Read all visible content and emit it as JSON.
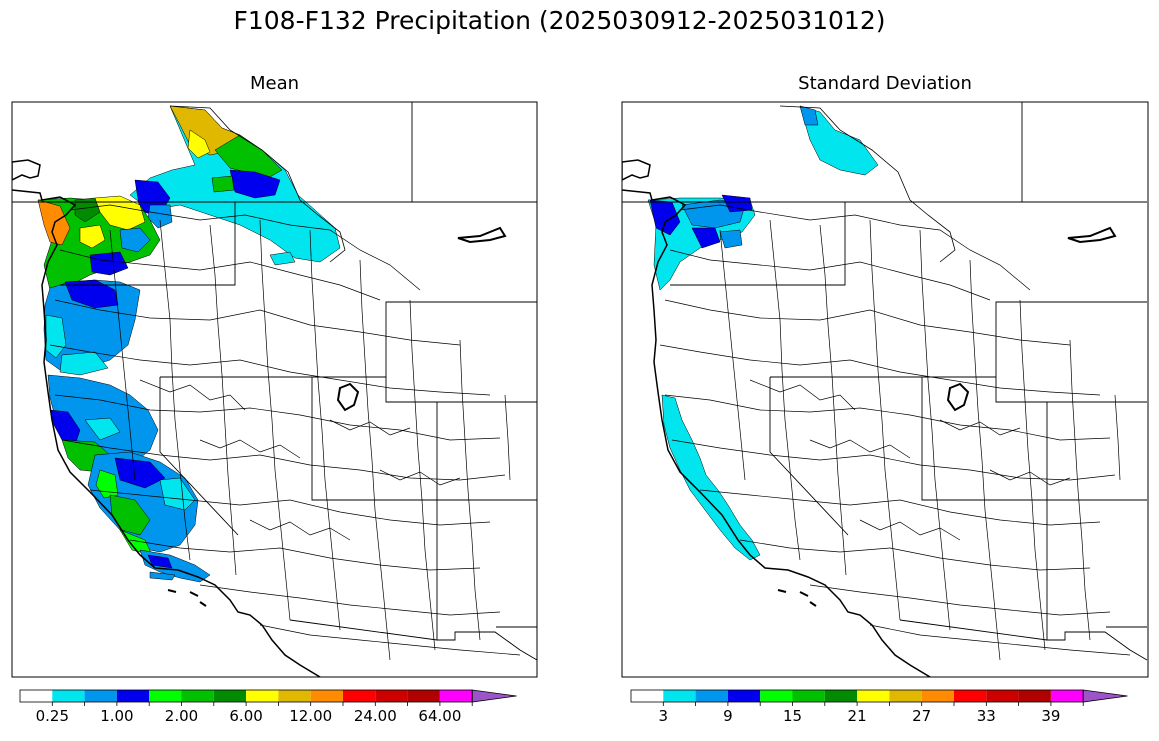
{
  "title": "F108-F132 Precipitation (2025030912-2025031012)",
  "panels": [
    {
      "title": "Mean",
      "colorbar": {
        "colors": [
          "#ffffff",
          "#00e5ee",
          "#0096ee",
          "#0000ee",
          "#00ff00",
          "#00c000",
          "#008b00",
          "#ffff00",
          "#e0b800",
          "#ff8c00",
          "#ff0000",
          "#cd0000",
          "#b00000",
          "#ff00ff",
          "#9b55c8"
        ],
        "tick_labels": [
          "0.25",
          "1.00",
          "2.00",
          "6.00",
          "12.00",
          "24.00",
          "64.00"
        ],
        "extend": "max"
      }
    },
    {
      "title": "Standard Deviation",
      "colorbar": {
        "colors": [
          "#ffffff",
          "#00e5ee",
          "#0096ee",
          "#0000ee",
          "#00ff00",
          "#00c000",
          "#008b00",
          "#ffff00",
          "#e0b800",
          "#ff8c00",
          "#ff0000",
          "#cd0000",
          "#b00000",
          "#ff00ff",
          "#9b55c8"
        ],
        "tick_labels": [
          "3",
          "9",
          "15",
          "21",
          "27",
          "33",
          "39"
        ],
        "extend": "max"
      }
    }
  ]
}
